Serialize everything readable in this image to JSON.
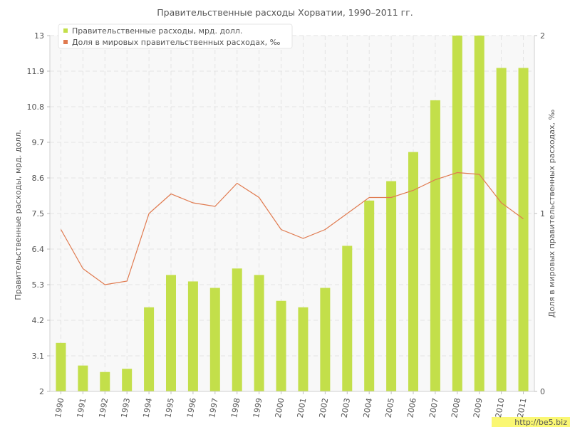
{
  "chart_data": {
    "type": "bar+line",
    "title": "Правительственные расходы Хорватии, 1990–2011 гг.",
    "ylabel_left": "Правительственные расходы, мрд. долл.",
    "ylabel_right": "Доля в мировых правительственных расходах, ‰",
    "categories": [
      "1990",
      "1991",
      "1992",
      "1993",
      "1994",
      "1995",
      "1996",
      "1997",
      "1998",
      "1999",
      "2000",
      "2001",
      "2002",
      "2003",
      "2004",
      "2005",
      "2006",
      "2007",
      "2008",
      "2009",
      "2010",
      "2011"
    ],
    "y_left": {
      "min": 2,
      "max": 13,
      "ticks": [
        "2",
        "3.1",
        "4.2",
        "5.3",
        "6.4",
        "7.5",
        "8.6",
        "9.7",
        "10.8",
        "11.9",
        "13"
      ]
    },
    "y_right": {
      "min": 0,
      "max": 2,
      "ticks": [
        "0",
        "1",
        "2"
      ]
    },
    "series": [
      {
        "name": "Правительственные расходы, мрд. долл.",
        "type": "bar",
        "axis": "left",
        "color": "#c3df4a",
        "values": [
          3.5,
          2.8,
          2.6,
          2.7,
          4.6,
          5.6,
          5.4,
          5.2,
          5.8,
          5.6,
          4.8,
          4.6,
          5.2,
          6.5,
          7.9,
          8.5,
          9.4,
          11.0,
          13.0,
          13.0,
          12.0,
          12.0
        ]
      },
      {
        "name": "Доля в мировых правительственных расходах, ‰",
        "type": "line",
        "axis": "right",
        "color": "#e07a4f",
        "values": [
          0.91,
          0.69,
          0.6,
          0.62,
          1.0,
          1.11,
          1.06,
          1.04,
          1.17,
          1.09,
          0.91,
          0.86,
          0.91,
          1.0,
          1.09,
          1.09,
          1.13,
          1.19,
          1.23,
          1.22,
          1.06,
          0.97
        ]
      }
    ],
    "grid": true,
    "legend_position": "top-left"
  },
  "watermark": "http://be5.biz",
  "colors": {
    "bar": "#c3df4a",
    "line": "#e07a4f",
    "grid": "#e3e3e3",
    "plot_bg": "#f8f8f8",
    "text": "#555555",
    "watermark_bg": "#f5f000"
  }
}
